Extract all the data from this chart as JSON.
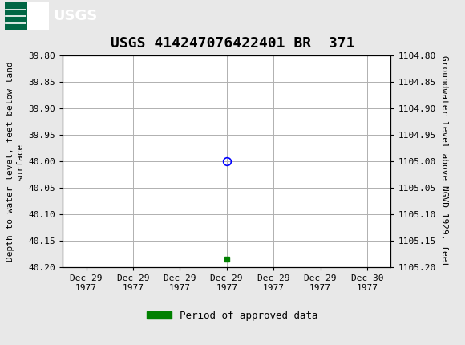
{
  "title": "USGS 414247076422401 BR  371",
  "ylabel_left": "Depth to water level, feet below land\nsurface",
  "ylabel_right": "Groundwater level above NGVD 1929, feet",
  "ylim_left": [
    39.8,
    40.2
  ],
  "ylim_right": [
    1104.8,
    1105.2
  ],
  "yticks_left": [
    39.8,
    39.85,
    39.9,
    39.95,
    40.0,
    40.05,
    40.1,
    40.15,
    40.2
  ],
  "ytick_labels_left": [
    "39.80",
    "39.85",
    "39.90",
    "39.95",
    "40.00",
    "40.05",
    "40.10",
    "40.15",
    "40.20"
  ],
  "yticks_right": [
    1104.8,
    1104.85,
    1104.9,
    1104.95,
    1105.0,
    1105.05,
    1105.1,
    1105.15,
    1105.2
  ],
  "ytick_labels_right": [
    "1104.80",
    "1104.85",
    "1104.90",
    "1104.95",
    "1105.00",
    "1105.05",
    "1105.10",
    "1105.15",
    "1105.20"
  ],
  "xtick_positions": [
    0,
    1,
    2,
    3,
    4,
    5,
    6
  ],
  "xtick_labels": [
    "Dec 29\n1977",
    "Dec 29\n1977",
    "Dec 29\n1977",
    "Dec 29\n1977",
    "Dec 29\n1977",
    "Dec 29\n1977",
    "Dec 30\n1977"
  ],
  "xlim": [
    -0.5,
    6.5
  ],
  "data_point_x": 3,
  "data_point_y": 40.0,
  "data_point_color": "blue",
  "data_point_marker": "o",
  "green_marker_x": 3,
  "green_marker_y": 40.185,
  "green_color": "#008000",
  "legend_label": "Period of approved data",
  "background_color": "#e8e8e8",
  "plot_bg_color": "#ffffff",
  "header_bg_color": "#006644",
  "grid_color": "#b0b0b0",
  "title_fontsize": 13,
  "axis_label_fontsize": 8,
  "tick_fontsize": 8,
  "legend_fontsize": 9
}
